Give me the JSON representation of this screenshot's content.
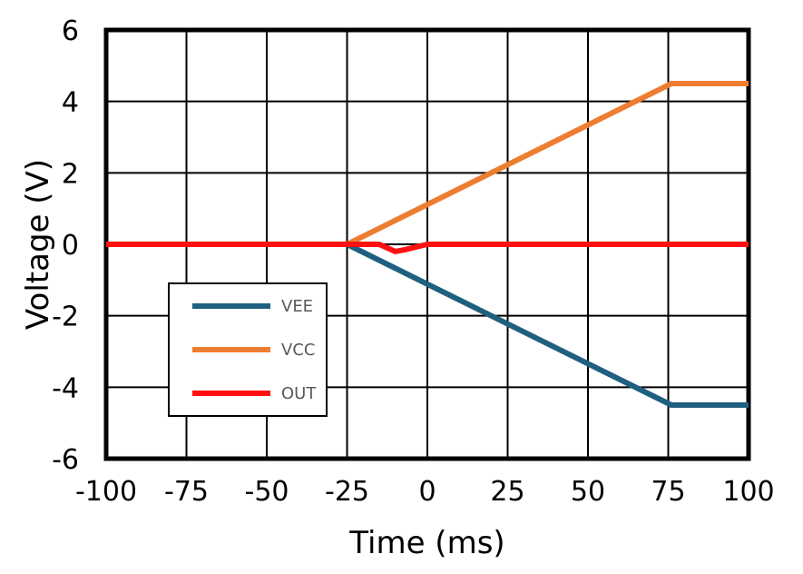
{
  "chart_data": {
    "type": "line",
    "title": "",
    "xlabel": "Time (ms)",
    "ylabel": "Voltage (V)",
    "xlim": [
      -100,
      100
    ],
    "ylim": [
      -6,
      6
    ],
    "xticks": [
      -100,
      -75,
      -50,
      -25,
      0,
      25,
      50,
      75,
      100
    ],
    "yticks": [
      -6,
      -4,
      -2,
      0,
      2,
      4,
      6
    ],
    "xtick_labels": [
      "-100",
      "-75",
      "-50",
      "-25",
      "0",
      "25",
      "50",
      "75",
      "100"
    ],
    "ytick_labels": [
      "-6",
      "-4",
      "-2",
      "0",
      "2",
      "4",
      "6"
    ],
    "grid": true,
    "legend_position": "lower-left",
    "series": [
      {
        "name": "VEE",
        "color": "#1f5f7f",
        "x": [
          -100,
          -25,
          76,
          100
        ],
        "y": [
          0,
          0,
          -4.5,
          -4.5
        ]
      },
      {
        "name": "VCC",
        "color": "#ed7d31",
        "x": [
          -100,
          -25,
          76,
          100
        ],
        "y": [
          0,
          0,
          4.5,
          4.5
        ]
      },
      {
        "name": "OUT",
        "color": "#ff1010",
        "x": [
          -100,
          -25,
          -15,
          -10,
          -7,
          0,
          100
        ],
        "y": [
          0,
          0,
          0,
          -0.2,
          -0.15,
          0,
          0
        ]
      }
    ]
  }
}
